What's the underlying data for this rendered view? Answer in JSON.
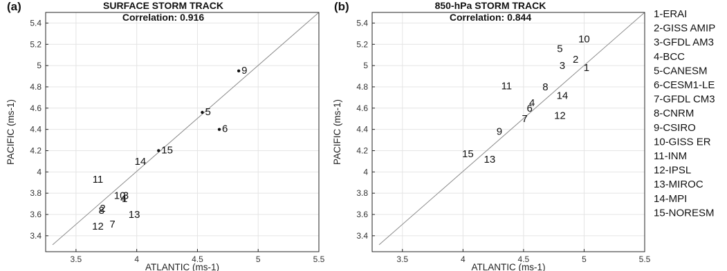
{
  "chart_data": [
    {
      "type": "scatter",
      "panel_tag": "(a)",
      "title": "SURFACE STORM TRACK",
      "subtitle": "Correlation: 0.916",
      "xlabel": "ATLANTIC (ms-1)",
      "ylabel": "PACIFIC (ms-1)",
      "xlim": [
        3.25,
        5.5
      ],
      "ylim": [
        3.25,
        5.5
      ],
      "xticks": [
        3.5,
        4,
        4.5,
        5,
        5.5
      ],
      "xtick_labels": [
        "3.5",
        "4",
        "4.5",
        "5",
        "5.5"
      ],
      "yticks": [
        3.4,
        3.6,
        3.8,
        4,
        4.2,
        4.4,
        4.6,
        4.8,
        5,
        5.2,
        5.4
      ],
      "ytick_labels": [
        "3.4",
        "3.6",
        "3.8",
        "4",
        "4.2",
        "4.4",
        "4.6",
        "4.8",
        "5",
        "5.2",
        "5.4"
      ],
      "grid": true,
      "reference_line": "1:1",
      "points": [
        {
          "label": "1",
          "x": 3.9,
          "y": 3.75
        },
        {
          "label": "2",
          "x": 3.72,
          "y": 3.66
        },
        {
          "label": "3",
          "x": 3.91,
          "y": 3.78
        },
        {
          "label": "4",
          "x": 3.89,
          "y": 3.75
        },
        {
          "label": "5",
          "x": 4.54,
          "y": 4.56,
          "marker": true
        },
        {
          "label": "6",
          "x": 4.68,
          "y": 4.4,
          "marker": true
        },
        {
          "label": "7",
          "x": 3.8,
          "y": 3.51
        },
        {
          "label": "8",
          "x": 3.71,
          "y": 3.64
        },
        {
          "label": "9",
          "x": 4.84,
          "y": 4.95,
          "marker": true
        },
        {
          "label": "10",
          "x": 3.86,
          "y": 3.78
        },
        {
          "label": "11",
          "x": 3.68,
          "y": 3.93
        },
        {
          "label": "12",
          "x": 3.68,
          "y": 3.49
        },
        {
          "label": "13",
          "x": 3.98,
          "y": 3.6
        },
        {
          "label": "14",
          "x": 4.03,
          "y": 4.1
        },
        {
          "label": "15",
          "x": 4.18,
          "y": 4.2,
          "marker": true
        }
      ]
    },
    {
      "type": "scatter",
      "panel_tag": "(b)",
      "title": "850-hPa STORM TRACK",
      "subtitle": "Correlation: 0.844",
      "xlabel": "ATLANTIC (ms-1)",
      "ylabel": "PACIFIC (ms-1)",
      "xlim": [
        3.25,
        5.5
      ],
      "ylim": [
        3.25,
        5.5
      ],
      "xticks": [
        3.5,
        4,
        4.5,
        5,
        5.5
      ],
      "xtick_labels": [
        "3.5",
        "4",
        "4.5",
        "5",
        "5.5"
      ],
      "yticks": [
        3.4,
        3.6,
        3.8,
        4,
        4.2,
        4.4,
        4.6,
        4.8,
        5,
        5.2,
        5.4
      ],
      "ytick_labels": [
        "3.4",
        "3.6",
        "3.8",
        "4",
        "4.2",
        "4.4",
        "4.6",
        "4.8",
        "5",
        "5.2",
        "5.4"
      ],
      "grid": true,
      "reference_line": "1:1",
      "points": [
        {
          "label": "1",
          "x": 5.02,
          "y": 4.98
        },
        {
          "label": "2",
          "x": 4.93,
          "y": 5.06
        },
        {
          "label": "3",
          "x": 4.82,
          "y": 5.0
        },
        {
          "label": "4",
          "x": 4.57,
          "y": 4.65
        },
        {
          "label": "5",
          "x": 4.8,
          "y": 5.16
        },
        {
          "label": "6",
          "x": 4.55,
          "y": 4.6
        },
        {
          "label": "7",
          "x": 4.51,
          "y": 4.5
        },
        {
          "label": "8",
          "x": 4.68,
          "y": 4.8
        },
        {
          "label": "9",
          "x": 4.3,
          "y": 4.38
        },
        {
          "label": "10",
          "x": 5.0,
          "y": 5.25
        },
        {
          "label": "11",
          "x": 4.36,
          "y": 4.81
        },
        {
          "label": "12",
          "x": 4.8,
          "y": 4.53
        },
        {
          "label": "13",
          "x": 4.22,
          "y": 4.12
        },
        {
          "label": "14",
          "x": 4.82,
          "y": 4.72
        },
        {
          "label": "15",
          "x": 4.04,
          "y": 4.17
        }
      ]
    }
  ],
  "legend": {
    "placement": "right",
    "entries": [
      "1-ERAI",
      "2-GISS AMIP",
      "3-GFDL AM3",
      "4-BCC",
      "5-CANESM",
      "6-CESM1-LE",
      "7-GFDL CM3",
      "8-CNRM",
      "9-CSIRO",
      "10-GISS ER",
      "11-INM",
      "12-IPSL",
      "13-MIROC",
      "14-MPI",
      "15-NORESM"
    ]
  },
  "colors": {
    "axis": "#222222",
    "grid": "#e4e4e4",
    "reference_line": "#8a8a8a",
    "text": "#111111",
    "marker": "#111111"
  }
}
